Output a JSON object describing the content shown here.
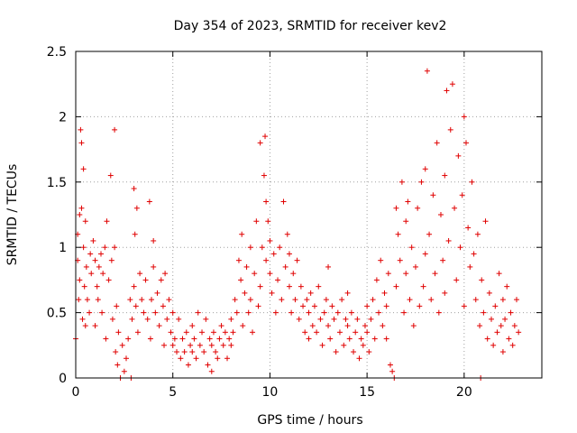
{
  "chart_data": {
    "type": "scatter",
    "title": "Day 354 of 2023, SRMTID for receiver kev2",
    "xlabel": "GPS time / hours",
    "ylabel": "SRMTID / TECUs",
    "xlim": [
      0,
      24
    ],
    "ylim": [
      0,
      2.5
    ],
    "xticks": [
      0,
      5,
      10,
      15,
      20
    ],
    "yticks": [
      0,
      0.5,
      1,
      1.5,
      2,
      2.5
    ],
    "xtick_labels": [
      "0",
      "5",
      "10",
      "15",
      "20"
    ],
    "ytick_labels": [
      "0",
      "0.5",
      "1",
      "1.5",
      "2",
      "2.5"
    ],
    "grid": true,
    "marker": "+",
    "color": "#e00000",
    "series": [
      {
        "name": "SRMTID",
        "points": [
          [
            0.0,
            0.3
          ],
          [
            0.1,
            0.9
          ],
          [
            0.1,
            1.1
          ],
          [
            0.15,
            0.6
          ],
          [
            0.2,
            1.25
          ],
          [
            0.2,
            0.75
          ],
          [
            0.25,
            1.9
          ],
          [
            0.3,
            1.8
          ],
          [
            0.3,
            1.3
          ],
          [
            0.35,
            0.45
          ],
          [
            0.4,
            1.6
          ],
          [
            0.4,
            1.0
          ],
          [
            0.45,
            0.7
          ],
          [
            0.5,
            1.2
          ],
          [
            0.5,
            0.4
          ],
          [
            0.55,
            0.85
          ],
          [
            0.6,
            0.6
          ],
          [
            0.7,
            0.5
          ],
          [
            0.75,
            0.95
          ],
          [
            0.8,
            0.8
          ],
          [
            0.9,
            1.05
          ],
          [
            1.0,
            0.9
          ],
          [
            1.0,
            0.4
          ],
          [
            1.1,
            0.7
          ],
          [
            1.15,
            0.6
          ],
          [
            1.2,
            0.85
          ],
          [
            1.3,
            0.95
          ],
          [
            1.35,
            0.5
          ],
          [
            1.4,
            0.8
          ],
          [
            1.5,
            1.0
          ],
          [
            1.55,
            0.3
          ],
          [
            1.6,
            1.2
          ],
          [
            1.7,
            0.75
          ],
          [
            1.8,
            1.55
          ],
          [
            1.85,
            0.9
          ],
          [
            1.9,
            0.45
          ],
          [
            2.0,
            1.0
          ],
          [
            2.0,
            1.9
          ],
          [
            2.05,
            0.2
          ],
          [
            2.1,
            0.55
          ],
          [
            2.15,
            0.1
          ],
          [
            2.2,
            0.35
          ],
          [
            2.3,
            0.0
          ],
          [
            2.4,
            0.25
          ],
          [
            2.5,
            0.05
          ],
          [
            2.6,
            0.15
          ],
          [
            2.7,
            0.3
          ],
          [
            2.8,
            0.6
          ],
          [
            2.85,
            0.0
          ],
          [
            2.9,
            0.45
          ],
          [
            3.0,
            1.45
          ],
          [
            3.0,
            0.7
          ],
          [
            3.05,
            1.1
          ],
          [
            3.1,
            0.55
          ],
          [
            3.15,
            1.3
          ],
          [
            3.2,
            0.35
          ],
          [
            3.3,
            0.8
          ],
          [
            3.4,
            0.6
          ],
          [
            3.5,
            0.5
          ],
          [
            3.6,
            0.75
          ],
          [
            3.7,
            0.45
          ],
          [
            3.8,
            1.35
          ],
          [
            3.85,
            0.3
          ],
          [
            3.9,
            0.6
          ],
          [
            4.0,
            1.05
          ],
          [
            4.0,
            0.85
          ],
          [
            4.1,
            0.5
          ],
          [
            4.2,
            0.65
          ],
          [
            4.3,
            0.4
          ],
          [
            4.4,
            0.75
          ],
          [
            4.5,
            0.55
          ],
          [
            4.55,
            0.25
          ],
          [
            4.6,
            0.8
          ],
          [
            4.7,
            0.45
          ],
          [
            4.8,
            0.6
          ],
          [
            4.9,
            0.35
          ],
          [
            5.0,
            0.5
          ],
          [
            5.0,
            0.25
          ],
          [
            5.1,
            0.3
          ],
          [
            5.2,
            0.2
          ],
          [
            5.3,
            0.45
          ],
          [
            5.4,
            0.15
          ],
          [
            5.5,
            0.3
          ],
          [
            5.6,
            0.2
          ],
          [
            5.7,
            0.35
          ],
          [
            5.8,
            0.1
          ],
          [
            5.9,
            0.25
          ],
          [
            6.0,
            0.4
          ],
          [
            6.0,
            0.2
          ],
          [
            6.1,
            0.3
          ],
          [
            6.2,
            0.15
          ],
          [
            6.3,
            0.5
          ],
          [
            6.4,
            0.25
          ],
          [
            6.5,
            0.35
          ],
          [
            6.6,
            0.2
          ],
          [
            6.7,
            0.45
          ],
          [
            6.8,
            0.1
          ],
          [
            6.9,
            0.3
          ],
          [
            7.0,
            0.25
          ],
          [
            7.0,
            0.05
          ],
          [
            7.1,
            0.35
          ],
          [
            7.2,
            0.2
          ],
          [
            7.3,
            0.15
          ],
          [
            7.4,
            0.3
          ],
          [
            7.5,
            0.4
          ],
          [
            7.6,
            0.25
          ],
          [
            7.7,
            0.35
          ],
          [
            7.8,
            0.15
          ],
          [
            7.9,
            0.3
          ],
          [
            8.0,
            0.45
          ],
          [
            8.0,
            0.25
          ],
          [
            8.1,
            0.35
          ],
          [
            8.2,
            0.6
          ],
          [
            8.3,
            0.5
          ],
          [
            8.4,
            0.9
          ],
          [
            8.5,
            0.75
          ],
          [
            8.55,
            1.1
          ],
          [
            8.6,
            0.4
          ],
          [
            8.7,
            0.65
          ],
          [
            8.8,
            0.85
          ],
          [
            8.9,
            0.5
          ],
          [
            9.0,
            1.0
          ],
          [
            9.0,
            0.6
          ],
          [
            9.1,
            0.35
          ],
          [
            9.2,
            0.8
          ],
          [
            9.3,
            1.2
          ],
          [
            9.4,
            0.55
          ],
          [
            9.5,
            1.8
          ],
          [
            9.5,
            0.7
          ],
          [
            9.6,
            1.0
          ],
          [
            9.7,
            1.55
          ],
          [
            9.75,
            1.85
          ],
          [
            9.8,
            1.35
          ],
          [
            9.8,
            0.9
          ],
          [
            9.9,
            1.2
          ],
          [
            10.0,
            0.8
          ],
          [
            10.0,
            1.05
          ],
          [
            10.1,
            0.65
          ],
          [
            10.2,
            0.95
          ],
          [
            10.3,
            0.5
          ],
          [
            10.4,
            0.75
          ],
          [
            10.5,
            1.0
          ],
          [
            10.6,
            0.6
          ],
          [
            10.7,
            1.35
          ],
          [
            10.8,
            0.85
          ],
          [
            10.9,
            1.1
          ],
          [
            11.0,
            0.7
          ],
          [
            11.0,
            0.95
          ],
          [
            11.1,
            0.5
          ],
          [
            11.2,
            0.8
          ],
          [
            11.3,
            0.6
          ],
          [
            11.4,
            0.9
          ],
          [
            11.5,
            0.45
          ],
          [
            11.6,
            0.7
          ],
          [
            11.7,
            0.55
          ],
          [
            11.8,
            0.35
          ],
          [
            11.9,
            0.6
          ],
          [
            12.0,
            0.5
          ],
          [
            12.0,
            0.3
          ],
          [
            12.1,
            0.65
          ],
          [
            12.2,
            0.4
          ],
          [
            12.3,
            0.55
          ],
          [
            12.4,
            0.35
          ],
          [
            12.5,
            0.7
          ],
          [
            12.6,
            0.45
          ],
          [
            12.7,
            0.25
          ],
          [
            12.8,
            0.5
          ],
          [
            12.9,
            0.6
          ],
          [
            13.0,
            0.4
          ],
          [
            13.0,
            0.85
          ],
          [
            13.1,
            0.3
          ],
          [
            13.2,
            0.55
          ],
          [
            13.3,
            0.45
          ],
          [
            13.4,
            0.2
          ],
          [
            13.5,
            0.5
          ],
          [
            13.6,
            0.35
          ],
          [
            13.7,
            0.6
          ],
          [
            13.8,
            0.25
          ],
          [
            13.9,
            0.45
          ],
          [
            14.0,
            0.4
          ],
          [
            14.0,
            0.65
          ],
          [
            14.1,
            0.3
          ],
          [
            14.2,
            0.5
          ],
          [
            14.3,
            0.2
          ],
          [
            14.4,
            0.35
          ],
          [
            14.5,
            0.45
          ],
          [
            14.6,
            0.15
          ],
          [
            14.7,
            0.3
          ],
          [
            14.8,
            0.25
          ],
          [
            14.9,
            0.4
          ],
          [
            15.0,
            0.35
          ],
          [
            15.0,
            0.55
          ],
          [
            15.1,
            0.2
          ],
          [
            15.2,
            0.45
          ],
          [
            15.3,
            0.6
          ],
          [
            15.4,
            0.3
          ],
          [
            15.5,
            0.75
          ],
          [
            15.6,
            0.5
          ],
          [
            15.7,
            0.9
          ],
          [
            15.8,
            0.4
          ],
          [
            15.9,
            0.65
          ],
          [
            16.0,
            0.55
          ],
          [
            16.0,
            0.3
          ],
          [
            16.1,
            0.8
          ],
          [
            16.2,
            0.1
          ],
          [
            16.3,
            0.05
          ],
          [
            16.4,
            0.0
          ],
          [
            16.5,
            1.3
          ],
          [
            16.5,
            0.7
          ],
          [
            16.6,
            1.1
          ],
          [
            16.7,
            0.9
          ],
          [
            16.8,
            1.5
          ],
          [
            16.9,
            0.5
          ],
          [
            17.0,
            1.2
          ],
          [
            17.0,
            0.8
          ],
          [
            17.1,
            1.35
          ],
          [
            17.2,
            0.6
          ],
          [
            17.3,
            1.0
          ],
          [
            17.4,
            0.4
          ],
          [
            17.5,
            0.85
          ],
          [
            17.6,
            1.3
          ],
          [
            17.7,
            0.55
          ],
          [
            17.8,
            1.5
          ],
          [
            17.9,
            0.7
          ],
          [
            18.0,
            1.6
          ],
          [
            18.0,
            0.95
          ],
          [
            18.1,
            2.35
          ],
          [
            18.2,
            1.1
          ],
          [
            18.3,
            0.6
          ],
          [
            18.4,
            1.4
          ],
          [
            18.5,
            0.8
          ],
          [
            18.6,
            1.8
          ],
          [
            18.7,
            0.5
          ],
          [
            18.8,
            1.25
          ],
          [
            18.9,
            0.9
          ],
          [
            19.0,
            1.55
          ],
          [
            19.0,
            0.65
          ],
          [
            19.1,
            2.2
          ],
          [
            19.2,
            1.05
          ],
          [
            19.3,
            1.9
          ],
          [
            19.4,
            2.25
          ],
          [
            19.5,
            1.3
          ],
          [
            19.6,
            0.75
          ],
          [
            19.7,
            1.7
          ],
          [
            19.8,
            1.0
          ],
          [
            19.9,
            1.4
          ],
          [
            20.0,
            2.0
          ],
          [
            20.0,
            0.55
          ],
          [
            20.1,
            1.8
          ],
          [
            20.2,
            1.15
          ],
          [
            20.3,
            0.85
          ],
          [
            20.4,
            1.5
          ],
          [
            20.5,
            0.95
          ],
          [
            20.6,
            0.6
          ],
          [
            20.7,
            1.1
          ],
          [
            20.8,
            0.4
          ],
          [
            20.85,
            0.0
          ],
          [
            20.9,
            0.75
          ],
          [
            21.0,
            0.5
          ],
          [
            21.1,
            1.2
          ],
          [
            21.2,
            0.3
          ],
          [
            21.3,
            0.65
          ],
          [
            21.4,
            0.45
          ],
          [
            21.5,
            0.25
          ],
          [
            21.6,
            0.55
          ],
          [
            21.7,
            0.35
          ],
          [
            21.8,
            0.8
          ],
          [
            21.9,
            0.4
          ],
          [
            22.0,
            0.6
          ],
          [
            22.0,
            0.2
          ],
          [
            22.1,
            0.45
          ],
          [
            22.2,
            0.7
          ],
          [
            22.3,
            0.3
          ],
          [
            22.4,
            0.5
          ],
          [
            22.5,
            0.25
          ],
          [
            22.6,
            0.4
          ],
          [
            22.7,
            0.6
          ],
          [
            22.8,
            0.35
          ]
        ]
      }
    ]
  }
}
